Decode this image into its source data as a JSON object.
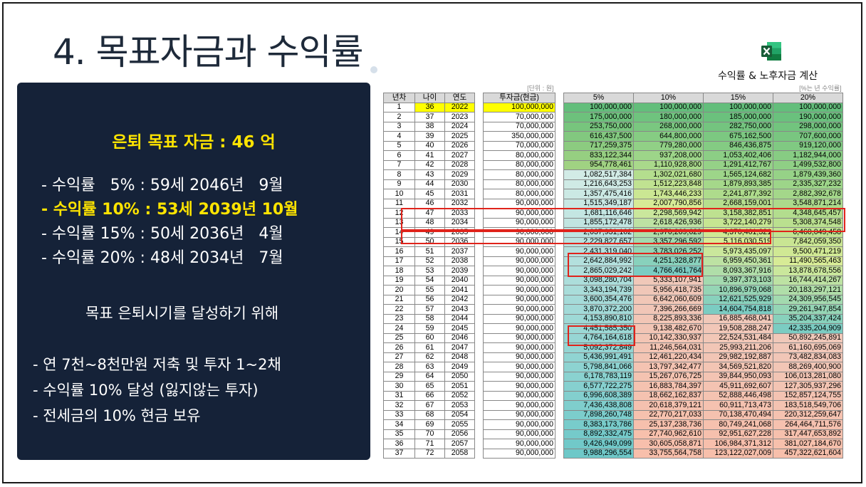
{
  "slide": {
    "title": "4. 목표자금과 수익률",
    "table_caption": "수익률 & 노후자금 계산"
  },
  "panel": {
    "goal": "은퇴 목표 자금 : 46 억",
    "rate_lines": [
      "- 수익률   5% : 59세 2046년   9월",
      "- 수익률 10% : 53세 2039년 10월",
      "- 수익률 15% : 50세 2036년   4월",
      "- 수익률 20% : 48세 2034년   7월"
    ],
    "purpose": "목표 은퇴시기를 달성하기 위해",
    "plans": [
      "- 연 7천~8천만원 저축 및 투자 1~2채",
      "- 수익률 10% 달성 (잃지않는 투자)",
      "- 전세금의 10% 현금 보유"
    ]
  },
  "sheet": {
    "unit_note": "[단위 : 원]",
    "rate_note": "[%는 년 수익률]",
    "headers": [
      "년차",
      "나이",
      "연도",
      "투자금(현금)",
      "5%",
      "10%",
      "15%",
      "20%"
    ],
    "rows": [
      [
        "1",
        "36",
        "2022",
        "100,000,000",
        "100,000,000",
        "100,000,000",
        "100,000,000",
        "100,000,000"
      ],
      [
        "2",
        "37",
        "2023",
        "70,000,000",
        "175,000,000",
        "180,000,000",
        "185,000,000",
        "190,000,000"
      ],
      [
        "3",
        "38",
        "2024",
        "70,000,000",
        "253,750,000",
        "268,000,000",
        "282,750,000",
        "298,000,000"
      ],
      [
        "4",
        "39",
        "2025",
        "350,000,000",
        "616,437,500",
        "644,800,000",
        "675,162,500",
        "707,600,000"
      ],
      [
        "5",
        "40",
        "2026",
        "70,000,000",
        "717,259,375",
        "779,280,000",
        "846,436,875",
        "919,120,000"
      ],
      [
        "6",
        "41",
        "2027",
        "80,000,000",
        "833,122,344",
        "937,208,000",
        "1,053,402,406",
        "1,182,944,000"
      ],
      [
        "7",
        "42",
        "2028",
        "80,000,000",
        "954,778,461",
        "1,110,928,800",
        "1,291,412,767",
        "1,499,532,800"
      ],
      [
        "8",
        "43",
        "2029",
        "80,000,000",
        "1,082,517,384",
        "1,302,021,680",
        "1,565,124,682",
        "1,879,439,360"
      ],
      [
        "9",
        "44",
        "2030",
        "80,000,000",
        "1,216,643,253",
        "1,512,223,848",
        "1,879,893,385",
        "2,335,327,232"
      ],
      [
        "10",
        "45",
        "2031",
        "80,000,000",
        "1,357,475,416",
        "1,743,446,233",
        "2,241,877,392",
        "2,882,392,678"
      ],
      [
        "11",
        "46",
        "2032",
        "90,000,000",
        "1,515,349,187",
        "2,007,790,856",
        "2,668,159,001",
        "3,548,871,214"
      ],
      [
        "12",
        "47",
        "2033",
        "90,000,000",
        "1,681,116,646",
        "2,298,569,942",
        "3,158,382,851",
        "4,348,645,457"
      ],
      [
        "13",
        "48",
        "2034",
        "90,000,000",
        "1,855,172,478",
        "2,618,426,936",
        "3,722,140,279",
        "5,308,374,548"
      ],
      [
        "14",
        "49",
        "2035",
        "90,000,000",
        "2,037,931,102",
        "2,970,269,629",
        "4,370,461,321",
        "6,460,049,458"
      ],
      [
        "15",
        "50",
        "2036",
        "90,000,000",
        "2,229,827,657",
        "3,357,296,592",
        "5,116,030,519",
        "7,842,059,350"
      ],
      [
        "16",
        "51",
        "2037",
        "90,000,000",
        "2,431,319,040",
        "3,783,026,252",
        "5,973,435,097",
        "9,500,471,219"
      ],
      [
        "17",
        "52",
        "2038",
        "90,000,000",
        "2,642,884,992",
        "4,251,328,877",
        "6,959,450,361",
        "11,490,565,463"
      ],
      [
        "18",
        "53",
        "2039",
        "90,000,000",
        "2,865,029,242",
        "4,766,461,764",
        "8,093,367,916",
        "13,878,678,556"
      ],
      [
        "19",
        "54",
        "2040",
        "90,000,000",
        "3,098,280,704",
        "5,333,107,941",
        "9,397,373,103",
        "16,744,414,267"
      ],
      [
        "20",
        "55",
        "2041",
        "90,000,000",
        "3,343,194,739",
        "5,956,418,735",
        "10,896,979,068",
        "20,183,297,121"
      ],
      [
        "21",
        "56",
        "2042",
        "90,000,000",
        "3,600,354,476",
        "6,642,060,609",
        "12,621,525,929",
        "24,309,956,545"
      ],
      [
        "22",
        "57",
        "2043",
        "90,000,000",
        "3,870,372,200",
        "7,396,266,669",
        "14,604,754,818",
        "29,261,947,854"
      ],
      [
        "23",
        "58",
        "2044",
        "90,000,000",
        "4,153,890,810",
        "8,225,893,336",
        "16,885,468,041",
        "35,204,337,424"
      ],
      [
        "24",
        "59",
        "2045",
        "90,000,000",
        "4,451,585,350",
        "9,138,482,670",
        "19,508,288,247",
        "42,335,204,909"
      ],
      [
        "25",
        "60",
        "2046",
        "90,000,000",
        "4,764,164,618",
        "10,142,330,937",
        "22,524,531,484",
        "50,892,245,891"
      ],
      [
        "26",
        "61",
        "2047",
        "90,000,000",
        "5,092,372,849",
        "11,246,564,031",
        "25,993,211,206",
        "61,160,695,069"
      ],
      [
        "27",
        "62",
        "2048",
        "90,000,000",
        "5,436,991,491",
        "12,461,220,434",
        "29,982,192,887",
        "73,482,834,083"
      ],
      [
        "28",
        "63",
        "2049",
        "90,000,000",
        "5,798,841,066",
        "13,797,342,477",
        "34,569,521,820",
        "88,269,400,900"
      ],
      [
        "29",
        "64",
        "2050",
        "90,000,000",
        "6,178,783,119",
        "15,267,076,725",
        "39,844,950,093",
        "106,013,281,080"
      ],
      [
        "30",
        "65",
        "2051",
        "90,000,000",
        "6,577,722,275",
        "16,883,784,397",
        "45,911,692,607",
        "127,305,937,296"
      ],
      [
        "31",
        "66",
        "2052",
        "90,000,000",
        "6,996,608,389",
        "18,662,162,837",
        "52,888,446,498",
        "152,857,124,755"
      ],
      [
        "32",
        "67",
        "2053",
        "90,000,000",
        "7,436,438,808",
        "20,618,379,121",
        "60,911,713,473",
        "183,518,549,706"
      ],
      [
        "33",
        "68",
        "2054",
        "90,000,000",
        "7,898,260,748",
        "22,770,217,033",
        "70,138,470,494",
        "220,312,259,647"
      ],
      [
        "34",
        "69",
        "2055",
        "90,000,000",
        "8,383,173,786",
        "25,137,238,736",
        "80,749,241,068",
        "264,464,711,576"
      ],
      [
        "35",
        "70",
        "2056",
        "90,000,000",
        "8,892,332,475",
        "27,740,962,610",
        "92,951,627,228",
        "317,447,653,892"
      ],
      [
        "36",
        "71",
        "2057",
        "90,000,000",
        "9,426,949,099",
        "30,605,058,871",
        "106,984,371,312",
        "381,027,184,670"
      ],
      [
        "37",
        "72",
        "2058",
        "90,000,000",
        "9,988,296,554",
        "33,755,564,758",
        "123,122,027,009",
        "457,322,621,604"
      ]
    ]
  }
}
